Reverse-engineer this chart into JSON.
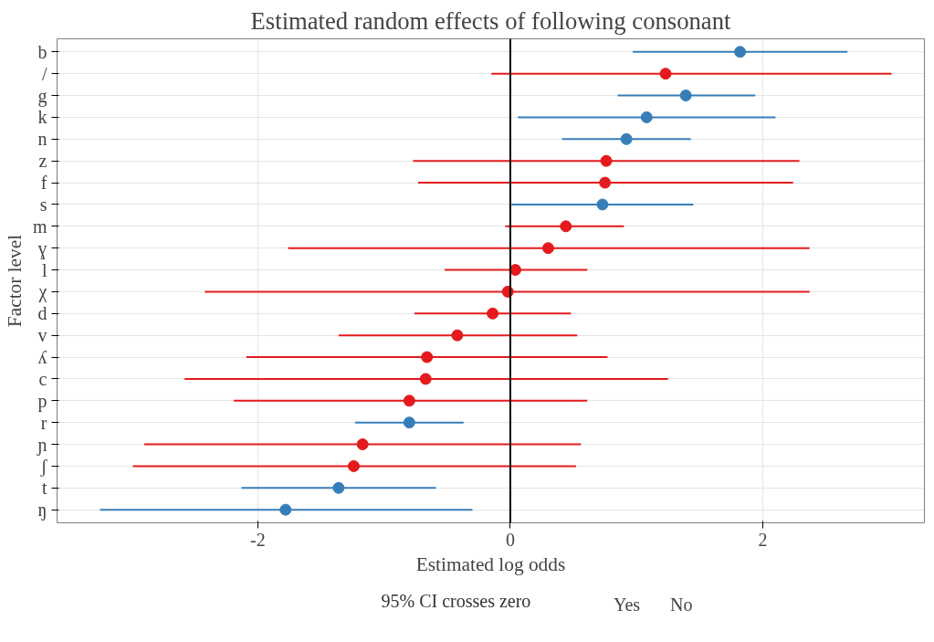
{
  "chart_data": {
    "type": "scatter",
    "orientation": "horizontal",
    "title": "Estimated random effects of following consonant",
    "xlabel": "Estimated log odds",
    "ylabel": "Factor level",
    "legend_title": "95% CI crosses zero",
    "legend": "bottom",
    "grid": true,
    "marker": "circle",
    "categories": [
      "b",
      "/",
      "g",
      "k",
      "n",
      "z",
      "f",
      "s",
      "m",
      "ɣ",
      "l",
      "χ",
      "d",
      "v",
      "ʎ",
      "c",
      "p",
      "r",
      "ɲ",
      "ʃ",
      "t",
      "ŋ"
    ],
    "xlim": [
      -3.59,
      3.28
    ],
    "xticks": [
      -2,
      0,
      2
    ],
    "ref_lines": [
      {
        "axis": "x",
        "value": 0,
        "color": "#000000"
      }
    ],
    "series": [
      {
        "name": "Yes",
        "color": "#e41a1c",
        "values": [
          null,
          1.23,
          null,
          null,
          null,
          0.76,
          0.75,
          null,
          0.44,
          0.3,
          0.04,
          -0.02,
          -0.14,
          -0.42,
          -0.66,
          -0.67,
          -0.8,
          null,
          -1.17,
          -1.24,
          null,
          null
        ],
        "errors": [
          null,
          [
            -0.15,
            3.02
          ],
          null,
          null,
          null,
          [
            -0.77,
            2.29
          ],
          [
            -0.73,
            2.24
          ],
          null,
          [
            -0.04,
            0.9
          ],
          [
            -1.76,
            2.37
          ],
          [
            -0.52,
            0.61
          ],
          [
            -2.42,
            2.37
          ],
          [
            -0.76,
            0.48
          ],
          [
            -1.36,
            0.53
          ],
          [
            -2.09,
            0.77
          ],
          [
            -2.58,
            1.25
          ],
          [
            -2.19,
            0.61
          ],
          null,
          [
            -2.9,
            0.56
          ],
          [
            -2.99,
            0.52
          ],
          null,
          null
        ]
      },
      {
        "name": "No",
        "color": "#377eb8",
        "values": [
          1.82,
          null,
          1.39,
          1.08,
          0.92,
          null,
          null,
          0.73,
          null,
          null,
          null,
          null,
          null,
          null,
          null,
          null,
          null,
          -0.8,
          null,
          null,
          -1.36,
          -1.78
        ],
        "errors": [
          [
            0.97,
            2.67
          ],
          null,
          [
            0.85,
            1.94
          ],
          [
            0.06,
            2.1
          ],
          [
            0.41,
            1.43
          ],
          null,
          null,
          [
            0.01,
            1.45
          ],
          null,
          null,
          null,
          null,
          null,
          null,
          null,
          null,
          null,
          [
            -1.23,
            -0.37
          ],
          null,
          null,
          [
            -2.13,
            -0.59
          ],
          [
            -3.25,
            -0.3
          ]
        ]
      }
    ]
  }
}
